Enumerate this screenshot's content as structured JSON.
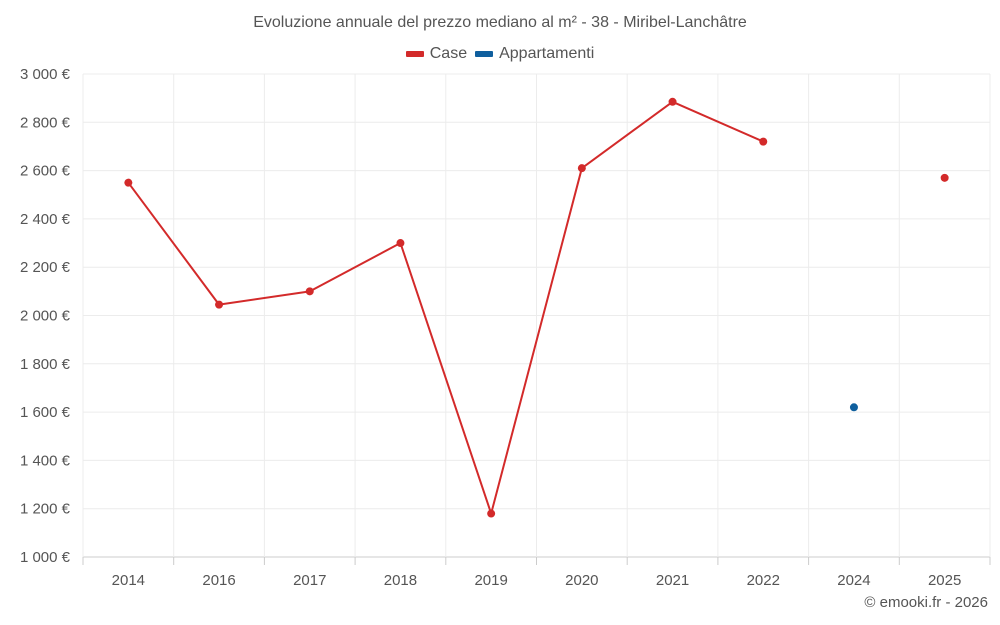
{
  "chart_data": {
    "type": "line",
    "title": "Evoluzione annuale del prezzo mediano al m² - 38 - Miribel-Lanchâtre",
    "categories": [
      "2014",
      "2016",
      "2017",
      "2018",
      "2019",
      "2020",
      "2021",
      "2022",
      "2024",
      "2025"
    ],
    "series": [
      {
        "name": "Case",
        "color": "#d32a2a",
        "values": [
          2550,
          2045,
          2100,
          2300,
          1180,
          2610,
          2885,
          2720,
          null,
          2570
        ]
      },
      {
        "name": "Appartamenti",
        "color": "#0f5f9e",
        "values": [
          null,
          null,
          null,
          null,
          null,
          null,
          null,
          null,
          1620,
          null
        ]
      }
    ],
    "ylim": [
      1000,
      3000
    ],
    "yticks": [
      1000,
      1200,
      1400,
      1600,
      1800,
      2000,
      2200,
      2400,
      2600,
      2800,
      3000
    ],
    "ytick_labels": [
      "1 000 €",
      "1 200 €",
      "1 400 €",
      "1 600 €",
      "1 800 €",
      "2 000 €",
      "2 200 €",
      "2 400 €",
      "2 600 €",
      "2 800 €",
      "3 000 €"
    ],
    "xlabel": "",
    "ylabel": "",
    "grid": true,
    "legend_position": "top-center"
  },
  "credit": "© emooki.fr - 2026"
}
